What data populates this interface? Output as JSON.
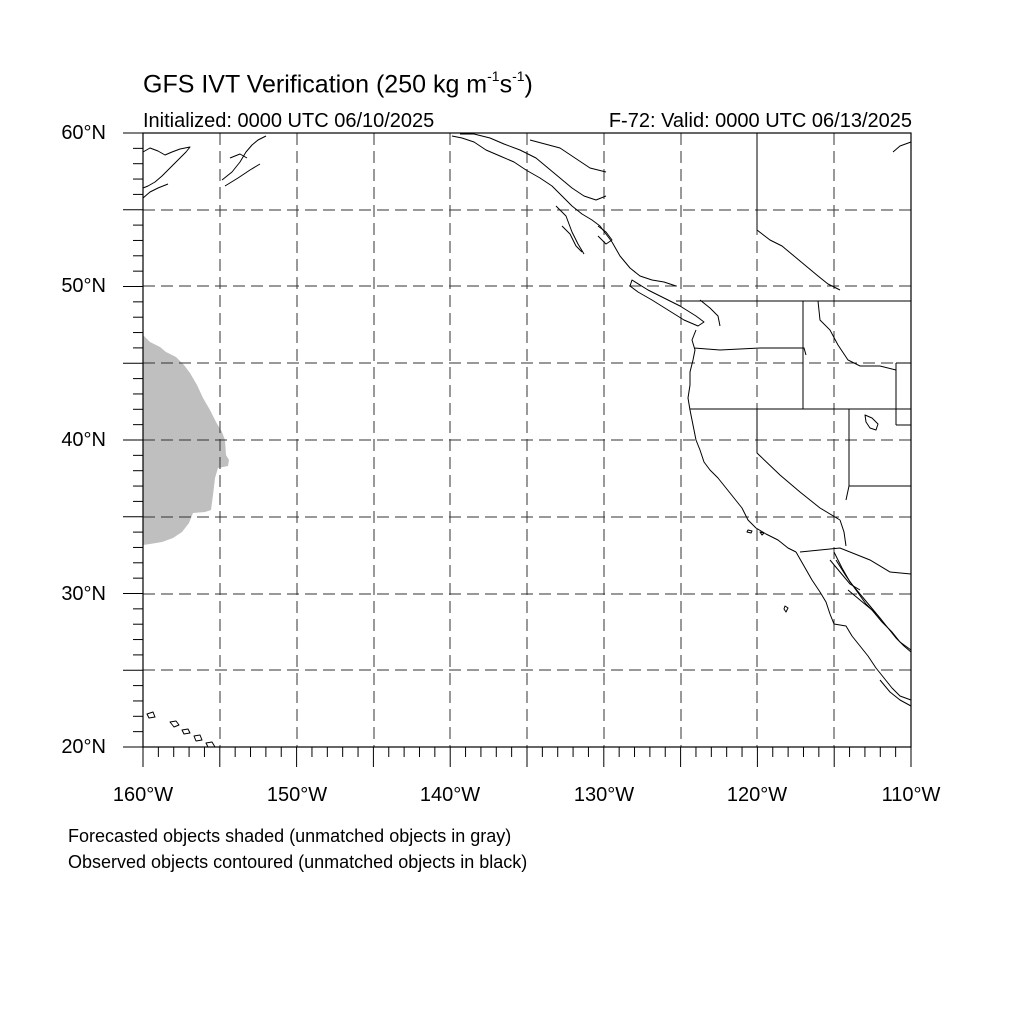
{
  "title": {
    "prefix": "GFS IVT Verification (250 kg m",
    "exp1": "-1",
    "mid": "s",
    "exp2": "-1",
    "suffix": ")"
  },
  "subtitle_left": "Initialized: 0000 UTC 06/10/2025",
  "subtitle_right": "F-72: Valid: 0000 UTC 06/13/2025",
  "lat_labels": [
    "60°N",
    "50°N",
    "40°N",
    "30°N",
    "20°N"
  ],
  "lon_labels": [
    "160°W",
    "150°W",
    "140°W",
    "130°W",
    "120°W",
    "110°W"
  ],
  "legend": [
    "Forecasted objects shaded (unmatched objects in gray)",
    "Observed objects contoured (unmatched objects in black)"
  ],
  "map": {
    "lon_range": [
      -160,
      -110
    ],
    "lat_range": [
      20,
      60
    ],
    "gridlines_dashed": true,
    "grid_spacing_deg": 5,
    "forecast_object_color": "#bfbfbf",
    "forecast_object_unmatched": true,
    "coastline_color": "#000000"
  }
}
